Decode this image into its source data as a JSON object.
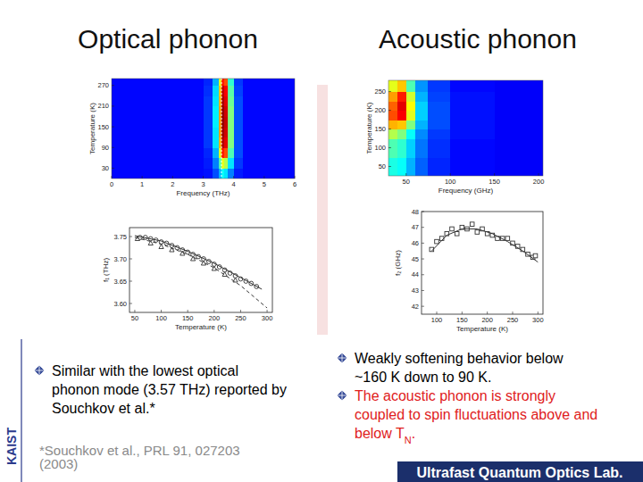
{
  "slide": {
    "headings": [
      "Optical phonon",
      "Acoustic phonon"
    ],
    "left_bullets": [
      {
        "color": "#000000",
        "lines": [
          [
            {
              "text": "Similar with the lowest optical"
            }
          ],
          [
            {
              "text": "phonon mode (3.57 THz) reported by"
            }
          ],
          [
            {
              "text": "Souchkov et al.*"
            }
          ]
        ]
      }
    ],
    "reference": [
      "*Souchkov et al., PRL 91, 027203",
      "(2003)"
    ],
    "right_bullets": [
      {
        "color": "#000000",
        "lines": [
          [
            {
              "text": "Weakly softening behavior below"
            }
          ],
          [
            {
              "text": "~160 K down to 90 K."
            }
          ]
        ]
      },
      {
        "color": "#e0201b",
        "lines": [
          [
            {
              "text": "The acoustic phonon is strongly"
            }
          ],
          [
            {
              "text": "coupled to spin fluctuations above and"
            }
          ],
          [
            {
              "text": "below "
            },
            {
              "text": "T"
            },
            {
              "text": "N",
              "sub": true
            },
            {
              "text": "."
            }
          ]
        ]
      }
    ],
    "side_label": "KAIST",
    "footer": "Ultrafast Quantum Optics Lab."
  },
  "chart_data": [
    {
      "type": "heatmap",
      "x_label": "Frequency (THz)",
      "y_label": "Temperature (K)",
      "xlim": [
        0,
        6
      ],
      "ylim": [
        0,
        290
      ],
      "xticks": [
        0,
        1,
        2,
        3,
        4,
        5,
        6
      ],
      "yticks": [
        30,
        90,
        150,
        210,
        270
      ],
      "x_edges": [
        0,
        3,
        3.3,
        3.5,
        3.6,
        3.7,
        3.8,
        4,
        4.3,
        6
      ],
      "y_edges": [
        0,
        30,
        60,
        90,
        120,
        150,
        180,
        210,
        240,
        270,
        290
      ],
      "color_range": [
        0,
        1
      ],
      "reference_line": 3.6,
      "cells": [
        [
          0.13,
          0.14,
          0.2,
          0.3,
          0.38,
          0.35,
          0.25,
          0.15,
          0.13
        ],
        [
          0.13,
          0.15,
          0.25,
          0.45,
          0.6,
          0.55,
          0.35,
          0.18,
          0.13
        ],
        [
          0.13,
          0.16,
          0.3,
          0.6,
          0.85,
          0.8,
          0.45,
          0.2,
          0.13
        ],
        [
          0.13,
          0.18,
          0.35,
          0.7,
          0.95,
          0.9,
          0.5,
          0.2,
          0.13
        ],
        [
          0.13,
          0.18,
          0.35,
          0.72,
          0.97,
          0.92,
          0.5,
          0.2,
          0.13
        ],
        [
          0.13,
          0.18,
          0.36,
          0.72,
          0.98,
          0.93,
          0.5,
          0.2,
          0.13
        ],
        [
          0.13,
          0.18,
          0.36,
          0.72,
          0.98,
          0.92,
          0.5,
          0.2,
          0.13
        ],
        [
          0.13,
          0.18,
          0.35,
          0.7,
          0.96,
          0.9,
          0.48,
          0.2,
          0.13
        ],
        [
          0.13,
          0.17,
          0.34,
          0.68,
          0.94,
          0.88,
          0.46,
          0.19,
          0.13
        ],
        [
          0.13,
          0.16,
          0.3,
          0.6,
          0.85,
          0.8,
          0.42,
          0.18,
          0.13
        ]
      ]
    },
    {
      "type": "line",
      "x_label": "Temperature (K)",
      "y_label": "f₁ (THz)",
      "xlim": [
        40,
        310
      ],
      "ylim": [
        3.58,
        3.77
      ],
      "xticks": [
        50,
        100,
        150,
        200,
        250,
        300
      ],
      "yticks": [
        {
          "value": 3.6,
          "label": "3.60"
        },
        3.65,
        {
          "value": 3.7,
          "label": "3.70"
        },
        3.75
      ],
      "grid": false,
      "series": [
        {
          "type": "scatter",
          "marker": "circle",
          "color": "#333333",
          "x": [
            60,
            70,
            80,
            90,
            100,
            110,
            120,
            130,
            140,
            150,
            160,
            170,
            180,
            190,
            200,
            210,
            220,
            230,
            240,
            250,
            260,
            270,
            280
          ],
          "values": [
            3.748,
            3.748,
            3.745,
            3.742,
            3.738,
            3.735,
            3.73,
            3.725,
            3.72,
            3.715,
            3.71,
            3.705,
            3.7,
            3.694,
            3.688,
            3.682,
            3.675,
            3.668,
            3.662,
            3.655,
            3.65,
            3.645,
            3.638
          ]
        },
        {
          "type": "scatter",
          "marker": "triangle",
          "color": "#333333",
          "x": [
            55,
            80,
            100,
            120,
            140,
            160,
            180,
            200,
            220,
            240
          ],
          "values": [
            3.745,
            3.735,
            3.727,
            3.72,
            3.712,
            3.7,
            3.69,
            3.678,
            3.665,
            3.652
          ]
        },
        {
          "type": "line",
          "line_style": "solid",
          "color": "#333333",
          "x": [
            50,
            100,
            150,
            200,
            250,
            290
          ],
          "values": [
            3.752,
            3.74,
            3.717,
            3.69,
            3.658,
            3.632
          ]
        },
        {
          "type": "line",
          "line_style": "dashed",
          "color": "#333333",
          "x": [
            50,
            100,
            150,
            200,
            250,
            300
          ],
          "values": [
            3.748,
            3.733,
            3.71,
            3.68,
            3.64,
            3.59
          ]
        }
      ]
    },
    {
      "type": "heatmap",
      "x_label": "Frequency (GHz)",
      "y_label": "Temperature (K)",
      "xlim": [
        30,
        205
      ],
      "ylim": [
        25,
        280
      ],
      "xticks": [
        50,
        100,
        150,
        200
      ],
      "yticks": [
        50,
        100,
        150,
        200,
        250
      ],
      "x_edges": [
        30,
        40,
        50,
        60,
        75,
        100,
        150,
        205
      ],
      "y_edges": [
        25,
        75,
        125,
        150,
        175,
        200,
        225,
        250,
        280
      ],
      "color_range": [
        0,
        1
      ],
      "cells": [
        [
          0.4,
          0.38,
          0.3,
          0.22,
          0.16,
          0.13,
          0.12
        ],
        [
          0.45,
          0.42,
          0.33,
          0.24,
          0.17,
          0.13,
          0.12
        ],
        [
          0.55,
          0.5,
          0.38,
          0.26,
          0.18,
          0.14,
          0.12
        ],
        [
          0.7,
          0.68,
          0.5,
          0.3,
          0.2,
          0.14,
          0.12
        ],
        [
          0.8,
          0.88,
          0.6,
          0.33,
          0.2,
          0.14,
          0.12
        ],
        [
          0.78,
          0.9,
          0.62,
          0.33,
          0.2,
          0.14,
          0.12
        ],
        [
          0.72,
          0.85,
          0.58,
          0.3,
          0.19,
          0.14,
          0.12
        ],
        [
          0.6,
          0.68,
          0.45,
          0.27,
          0.18,
          0.13,
          0.12
        ]
      ]
    },
    {
      "type": "line",
      "x_label": "Temperature (K)",
      "y_label": "f₂ (GHz)",
      "xlim": [
        70,
        310
      ],
      "ylim": [
        41.5,
        48
      ],
      "xticks": [
        100,
        150,
        200,
        250,
        300
      ],
      "yticks": [
        42,
        43,
        44,
        45,
        46,
        47,
        48
      ],
      "grid": false,
      "series": [
        {
          "type": "scatter",
          "marker": "square",
          "color": "#333333",
          "x": [
            90,
            100,
            110,
            120,
            130,
            140,
            150,
            160,
            170,
            180,
            190,
            200,
            210,
            220,
            230,
            240,
            250,
            260,
            270,
            280,
            290,
            295
          ],
          "values": [
            45.6,
            46.1,
            46.3,
            46.6,
            46.9,
            46.6,
            47.0,
            46.9,
            47.2,
            46.7,
            46.9,
            46.6,
            46.5,
            46.3,
            46.3,
            46.3,
            46.0,
            45.8,
            45.6,
            45.3,
            45.1,
            45.2
          ]
        },
        {
          "type": "line",
          "line_style": "solid",
          "color": "#333333",
          "x": [
            90,
            120,
            150,
            180,
            210,
            240,
            270,
            300
          ],
          "values": [
            45.5,
            46.5,
            46.9,
            46.9,
            46.6,
            46.1,
            45.5,
            44.8
          ]
        }
      ]
    }
  ]
}
